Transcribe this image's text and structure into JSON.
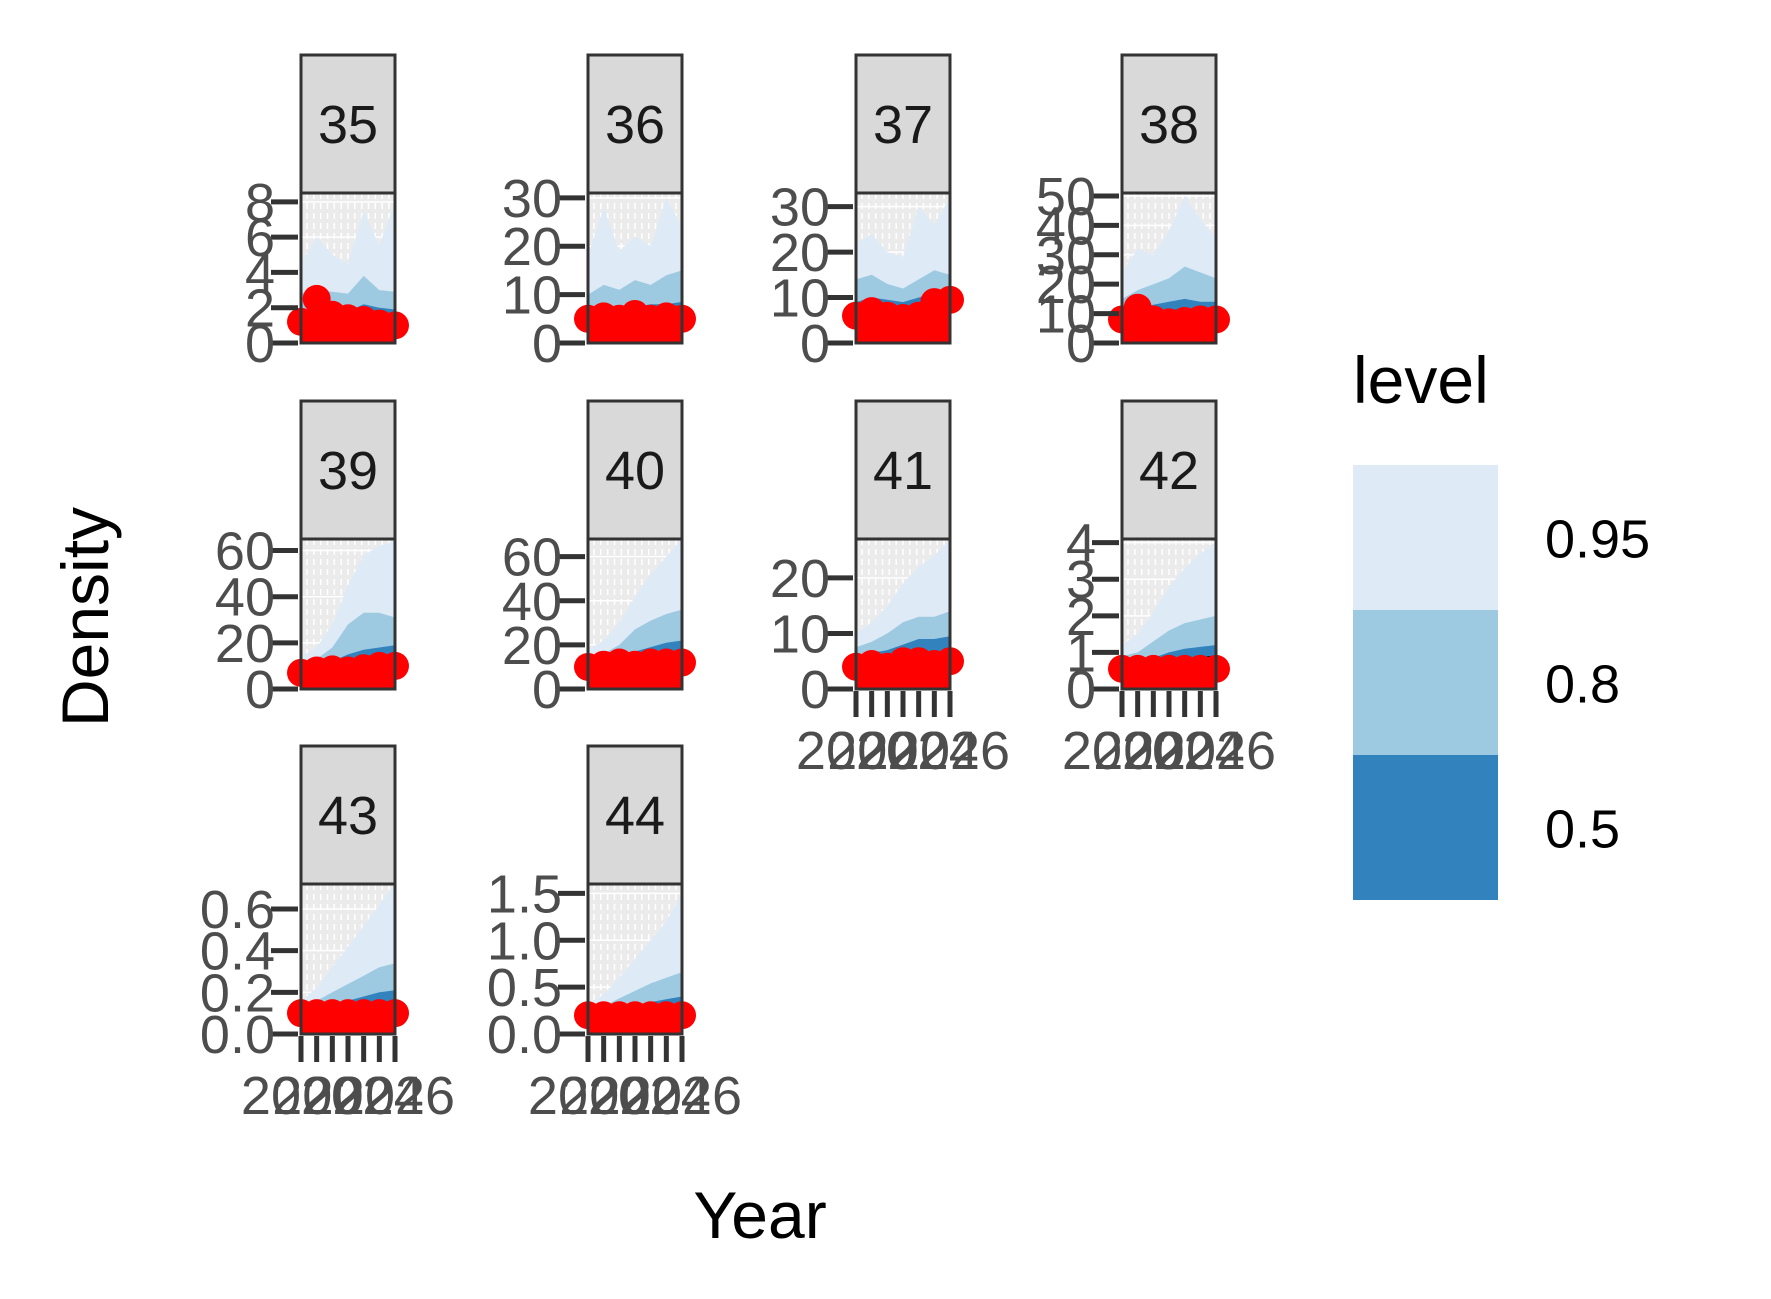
{
  "chart_data": {
    "type": "area",
    "xlabel": "Year",
    "ylabel": "Density",
    "x": [
      2020,
      2021,
      2022,
      2023,
      2024,
      2025,
      2026
    ],
    "x_ticks": [
      "2020",
      "2022",
      "2024",
      "2026"
    ],
    "legend": {
      "title": "level",
      "placement": "right",
      "entries": [
        {
          "label": "0.95",
          "color": "#deebf7"
        },
        {
          "label": "0.8",
          "color": "#9ecae1"
        },
        {
          "label": "0.5",
          "color": "#3182bd"
        }
      ]
    },
    "colors": {
      "observed": "#ff0000",
      "median": "#000000",
      "panel_bg": "#ebebeb",
      "strip_bg": "#d9d9d9",
      "border": "#333333"
    },
    "panels": [
      {
        "id": "35",
        "ylim": [
          0,
          8.5
        ],
        "y_ticks": [
          "0",
          "2",
          "4",
          "6",
          "8"
        ],
        "y_tick_values": [
          0,
          2,
          4,
          6,
          8
        ],
        "show_x_axis": false,
        "observed": [
          1.2,
          2.5,
          1.6,
          1.4,
          1.3,
          1.1,
          1.0
        ],
        "median": [
          1.2,
          1.5,
          1.3,
          1.2,
          1.4,
          1.3,
          1.2
        ],
        "band50": [
          [
            0.8,
            1.8
          ],
          [
            1.0,
            2.0
          ],
          [
            0.9,
            1.9
          ],
          [
            0.8,
            1.8
          ],
          [
            0.9,
            2.2
          ],
          [
            0.9,
            2.0
          ],
          [
            0.8,
            1.9
          ]
        ],
        "band80": [
          [
            0.5,
            2.8
          ],
          [
            0.7,
            3.0
          ],
          [
            0.6,
            2.9
          ],
          [
            0.5,
            2.8
          ],
          [
            0.6,
            3.8
          ],
          [
            0.6,
            3.0
          ],
          [
            0.5,
            2.9
          ]
        ],
        "band95": [
          [
            0.3,
            4.5
          ],
          [
            0.4,
            6.0
          ],
          [
            0.3,
            5.0
          ],
          [
            0.3,
            4.5
          ],
          [
            0.4,
            7.5
          ],
          [
            0.3,
            5.5
          ],
          [
            0.3,
            8.0
          ]
        ]
      },
      {
        "id": "36",
        "ylim": [
          0,
          31
        ],
        "y_ticks": [
          "0",
          "10",
          "20",
          "30"
        ],
        "y_tick_values": [
          0,
          10,
          20,
          30
        ],
        "show_x_axis": false,
        "observed": [
          5,
          5.5,
          5,
          6,
          5,
          5.5,
          5
        ],
        "median": [
          5,
          6,
          5.5,
          5.5,
          6,
          5.5,
          6
        ],
        "band50": [
          [
            3,
            7
          ],
          [
            3.5,
            8
          ],
          [
            3,
            7.5
          ],
          [
            3,
            7.5
          ],
          [
            3.5,
            8
          ],
          [
            3,
            8
          ],
          [
            3,
            8.5
          ]
        ],
        "band80": [
          [
            2,
            10
          ],
          [
            2.5,
            12
          ],
          [
            2,
            11
          ],
          [
            2,
            13
          ],
          [
            2.5,
            12
          ],
          [
            2,
            14
          ],
          [
            2,
            15
          ]
        ],
        "band95": [
          [
            1,
            18
          ],
          [
            1.5,
            28
          ],
          [
            1,
            19
          ],
          [
            1,
            22
          ],
          [
            1.5,
            20
          ],
          [
            1,
            30
          ],
          [
            1,
            24
          ]
        ]
      },
      {
        "id": "37",
        "ylim": [
          0,
          33
        ],
        "y_ticks": [
          "0",
          "10",
          "20",
          "30"
        ],
        "y_tick_values": [
          0,
          10,
          20,
          30
        ],
        "show_x_axis": false,
        "observed": [
          6,
          7,
          6,
          5.5,
          6,
          9,
          9.5
        ],
        "median": [
          7,
          7.5,
          7,
          6.5,
          7,
          8,
          8.5
        ],
        "band50": [
          [
            4,
            9
          ],
          [
            4.5,
            10
          ],
          [
            4,
            9.5
          ],
          [
            4,
            9
          ],
          [
            4,
            10
          ],
          [
            5,
            11
          ],
          [
            5,
            11.5
          ]
        ],
        "band80": [
          [
            3,
            14
          ],
          [
            3,
            15
          ],
          [
            3,
            13
          ],
          [
            3,
            12
          ],
          [
            3,
            14
          ],
          [
            3.5,
            16
          ],
          [
            3.5,
            15
          ]
        ],
        "band95": [
          [
            2,
            22
          ],
          [
            2,
            24
          ],
          [
            2,
            20
          ],
          [
            2,
            19
          ],
          [
            2,
            30
          ],
          [
            2.5,
            26
          ],
          [
            2.5,
            32
          ]
        ]
      },
      {
        "id": "38",
        "ylim": [
          0,
          51
        ],
        "y_ticks": [
          "0",
          "10",
          "20",
          "30",
          "40",
          "50"
        ],
        "y_tick_values": [
          0,
          10,
          20,
          30,
          40,
          50
        ],
        "show_x_axis": false,
        "observed": [
          8,
          12,
          8,
          7,
          7.5,
          8,
          8
        ],
        "median": [
          8,
          9,
          9,
          10,
          11,
          10,
          10
        ],
        "band50": [
          [
            6,
            11
          ],
          [
            6,
            12
          ],
          [
            6,
            13
          ],
          [
            6.5,
            14
          ],
          [
            7,
            15
          ],
          [
            6.5,
            14
          ],
          [
            6.5,
            14
          ]
        ],
        "band80": [
          [
            4,
            15
          ],
          [
            4,
            18
          ],
          [
            4,
            20
          ],
          [
            4.5,
            22
          ],
          [
            5,
            26
          ],
          [
            4.5,
            24
          ],
          [
            4.5,
            22
          ]
        ],
        "band95": [
          [
            2,
            24
          ],
          [
            2,
            32
          ],
          [
            2,
            30
          ],
          [
            2.5,
            38
          ],
          [
            3,
            50
          ],
          [
            2.5,
            42
          ],
          [
            2.5,
            36
          ]
        ]
      },
      {
        "id": "39",
        "ylim": [
          0,
          65
        ],
        "y_ticks": [
          "0",
          "20",
          "40",
          "60"
        ],
        "y_tick_values": [
          0,
          20,
          40,
          60
        ],
        "show_x_axis": false,
        "observed": [
          7,
          8,
          8.5,
          8,
          9,
          10,
          10
        ],
        "median": [
          7.5,
          8,
          9,
          10,
          11,
          12,
          12
        ],
        "band50": [
          [
            6,
            9
          ],
          [
            6,
            10
          ],
          [
            6,
            12
          ],
          [
            6.5,
            15
          ],
          [
            7,
            17
          ],
          [
            7,
            18
          ],
          [
            7,
            19
          ]
        ],
        "band80": [
          [
            5,
            11
          ],
          [
            5,
            13
          ],
          [
            5,
            18
          ],
          [
            5,
            28
          ],
          [
            5.5,
            33
          ],
          [
            5.5,
            33
          ],
          [
            5.5,
            31
          ]
        ],
        "band95": [
          [
            3,
            14
          ],
          [
            3,
            18
          ],
          [
            3,
            28
          ],
          [
            3,
            45
          ],
          [
            3.5,
            58
          ],
          [
            3.5,
            62
          ],
          [
            3.5,
            64
          ]
        ]
      },
      {
        "id": "40",
        "ylim": [
          0,
          68
        ],
        "y_ticks": [
          "0",
          "20",
          "40",
          "60"
        ],
        "y_tick_values": [
          0,
          20,
          40,
          60
        ],
        "show_x_axis": false,
        "observed": [
          10,
          11,
          12,
          11,
          12,
          12,
          12
        ],
        "median": [
          10,
          11,
          12,
          13,
          14,
          14,
          15
        ],
        "band50": [
          [
            9,
            12
          ],
          [
            9,
            13
          ],
          [
            9,
            15
          ],
          [
            9,
            17
          ],
          [
            9.5,
            19
          ],
          [
            9.5,
            21
          ],
          [
            9.5,
            22
          ]
        ],
        "band80": [
          [
            7,
            14
          ],
          [
            7,
            16
          ],
          [
            7,
            20
          ],
          [
            7,
            27
          ],
          [
            7.5,
            31
          ],
          [
            7.5,
            34
          ],
          [
            7.5,
            36
          ]
        ],
        "band95": [
          [
            5,
            18
          ],
          [
            5,
            22
          ],
          [
            5,
            30
          ],
          [
            5,
            42
          ],
          [
            5.5,
            52
          ],
          [
            5.5,
            60
          ],
          [
            5.5,
            68
          ]
        ]
      },
      {
        "id": "41",
        "ylim": [
          0,
          27
        ],
        "y_ticks": [
          "0",
          "10",
          "20"
        ],
        "y_tick_values": [
          0,
          10,
          20
        ],
        "show_x_axis": true,
        "observed": [
          4,
          4.5,
          4,
          5,
          5,
          4.5,
          5
        ],
        "median": [
          4.5,
          5,
          5,
          5.5,
          6,
          6,
          6.5
        ],
        "band50": [
          [
            3.5,
            6
          ],
          [
            3.5,
            6.5
          ],
          [
            3.5,
            7
          ],
          [
            3.5,
            8
          ],
          [
            4,
            9
          ],
          [
            4,
            9
          ],
          [
            4,
            9.5
          ]
        ],
        "band80": [
          [
            3,
            7.5
          ],
          [
            3,
            8.5
          ],
          [
            3,
            10
          ],
          [
            3,
            12
          ],
          [
            3,
            13
          ],
          [
            3,
            13
          ],
          [
            3,
            14
          ]
        ],
        "band95": [
          [
            2,
            10
          ],
          [
            2,
            12
          ],
          [
            2,
            15
          ],
          [
            2,
            19
          ],
          [
            2,
            22
          ],
          [
            2,
            24
          ],
          [
            2,
            27
          ]
        ]
      },
      {
        "id": "42",
        "ylim": [
          0,
          4.1
        ],
        "y_ticks": [
          "0",
          "1",
          "2",
          "3",
          "4"
        ],
        "y_tick_values": [
          0,
          1,
          2,
          3,
          4
        ],
        "show_x_axis": true,
        "observed": [
          0.55,
          0.55,
          0.55,
          0.55,
          0.55,
          0.55,
          0.55
        ],
        "median": [
          0.6,
          0.6,
          0.65,
          0.7,
          0.75,
          0.8,
          0.85
        ],
        "band50": [
          [
            0.5,
            0.7
          ],
          [
            0.5,
            0.75
          ],
          [
            0.5,
            0.85
          ],
          [
            0.5,
            1.0
          ],
          [
            0.5,
            1.1
          ],
          [
            0.5,
            1.15
          ],
          [
            0.5,
            1.2
          ]
        ],
        "band80": [
          [
            0.4,
            0.9
          ],
          [
            0.4,
            1.0
          ],
          [
            0.4,
            1.3
          ],
          [
            0.4,
            1.6
          ],
          [
            0.4,
            1.8
          ],
          [
            0.4,
            1.9
          ],
          [
            0.4,
            2.0
          ]
        ],
        "band95": [
          [
            0.3,
            1.2
          ],
          [
            0.3,
            1.5
          ],
          [
            0.3,
            2.1
          ],
          [
            0.3,
            2.8
          ],
          [
            0.3,
            3.3
          ],
          [
            0.3,
            3.7
          ],
          [
            0.3,
            4.0
          ]
        ]
      },
      {
        "id": "43",
        "ylim": [
          0,
          0.72
        ],
        "y_ticks": [
          "0.0",
          "0.2",
          "0.4",
          "0.6"
        ],
        "y_tick_values": [
          0,
          0.2,
          0.4,
          0.6
        ],
        "show_x_axis": true,
        "observed": [
          0.1,
          0.1,
          0.1,
          0.1,
          0.1,
          0.1,
          0.1
        ],
        "median": [
          0.1,
          0.1,
          0.11,
          0.12,
          0.13,
          0.14,
          0.15
        ],
        "band50": [
          [
            0.09,
            0.11
          ],
          [
            0.09,
            0.12
          ],
          [
            0.09,
            0.14
          ],
          [
            0.09,
            0.16
          ],
          [
            0.09,
            0.18
          ],
          [
            0.09,
            0.2
          ],
          [
            0.09,
            0.21
          ]
        ],
        "band80": [
          [
            0.08,
            0.13
          ],
          [
            0.08,
            0.16
          ],
          [
            0.08,
            0.2
          ],
          [
            0.08,
            0.24
          ],
          [
            0.08,
            0.28
          ],
          [
            0.08,
            0.32
          ],
          [
            0.08,
            0.34
          ]
        ],
        "band95": [
          [
            0.06,
            0.16
          ],
          [
            0.06,
            0.22
          ],
          [
            0.06,
            0.32
          ],
          [
            0.06,
            0.42
          ],
          [
            0.06,
            0.52
          ],
          [
            0.06,
            0.62
          ],
          [
            0.06,
            0.72
          ]
        ]
      },
      {
        "id": "44",
        "ylim": [
          0,
          1.6
        ],
        "y_ticks": [
          "0.0",
          "0.5",
          "1.0",
          "1.5"
        ],
        "y_tick_values": [
          0,
          0.5,
          1.0,
          1.5
        ],
        "show_x_axis": true,
        "observed": [
          0.2,
          0.2,
          0.2,
          0.2,
          0.2,
          0.2,
          0.2
        ],
        "median": [
          0.2,
          0.21,
          0.22,
          0.24,
          0.26,
          0.28,
          0.3
        ],
        "band50": [
          [
            0.18,
            0.22
          ],
          [
            0.18,
            0.24
          ],
          [
            0.18,
            0.27
          ],
          [
            0.18,
            0.31
          ],
          [
            0.18,
            0.34
          ],
          [
            0.18,
            0.37
          ],
          [
            0.18,
            0.4
          ]
        ],
        "band80": [
          [
            0.16,
            0.26
          ],
          [
            0.16,
            0.3
          ],
          [
            0.16,
            0.38
          ],
          [
            0.16,
            0.46
          ],
          [
            0.16,
            0.54
          ],
          [
            0.16,
            0.6
          ],
          [
            0.16,
            0.66
          ]
        ],
        "band95": [
          [
            0.12,
            0.32
          ],
          [
            0.12,
            0.42
          ],
          [
            0.12,
            0.6
          ],
          [
            0.12,
            0.8
          ],
          [
            0.12,
            1.0
          ],
          [
            0.12,
            1.2
          ],
          [
            0.12,
            1.5
          ]
        ]
      }
    ]
  }
}
